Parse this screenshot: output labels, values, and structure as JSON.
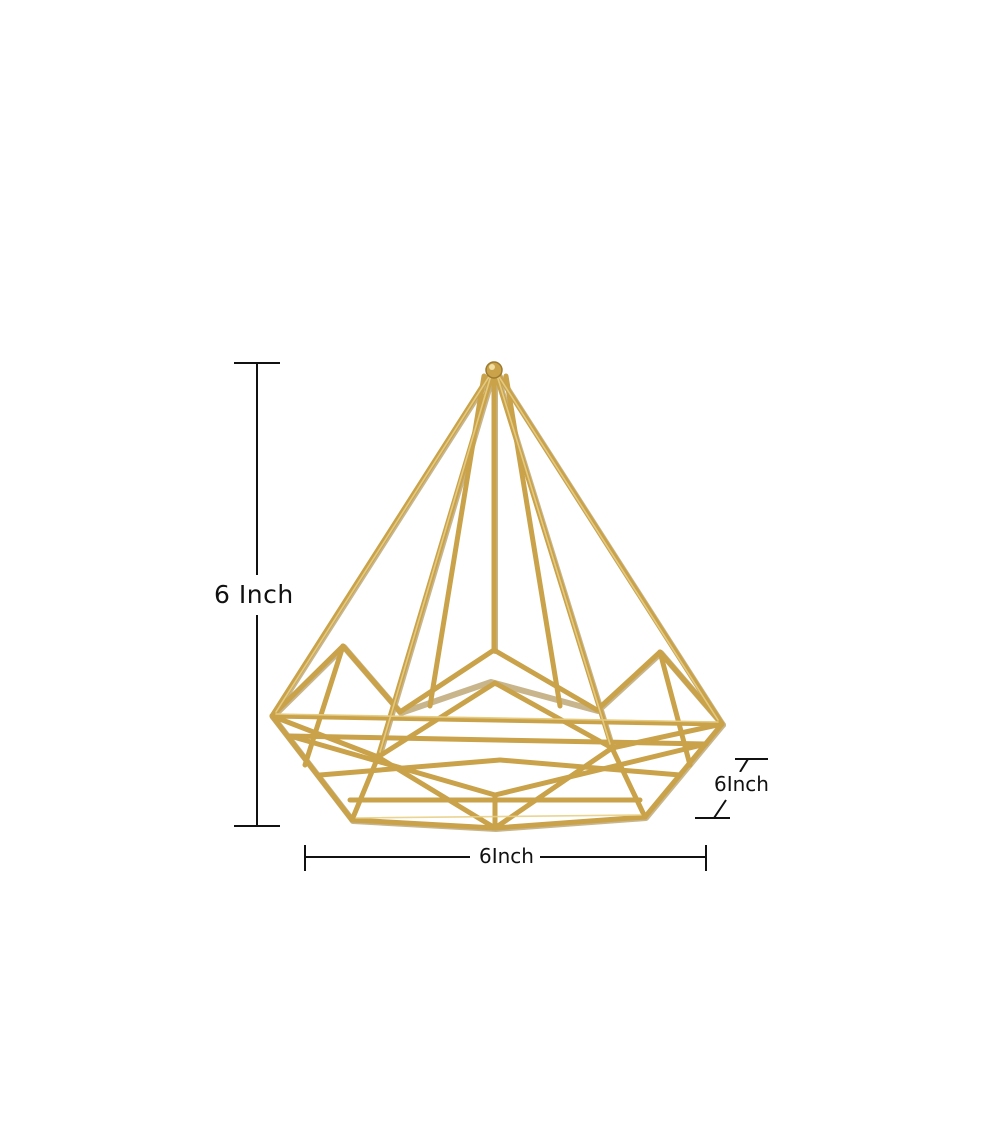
{
  "product": {
    "name": "gold-wire-geometric-diamond-planter",
    "color": "#c9a24a",
    "highlight_color": "#e8cf86",
    "shadow_color": "#9c7a2e"
  },
  "dimensions": {
    "height_label": "6 Inch",
    "width_label": "6Inch",
    "depth_label": "6Inch"
  }
}
